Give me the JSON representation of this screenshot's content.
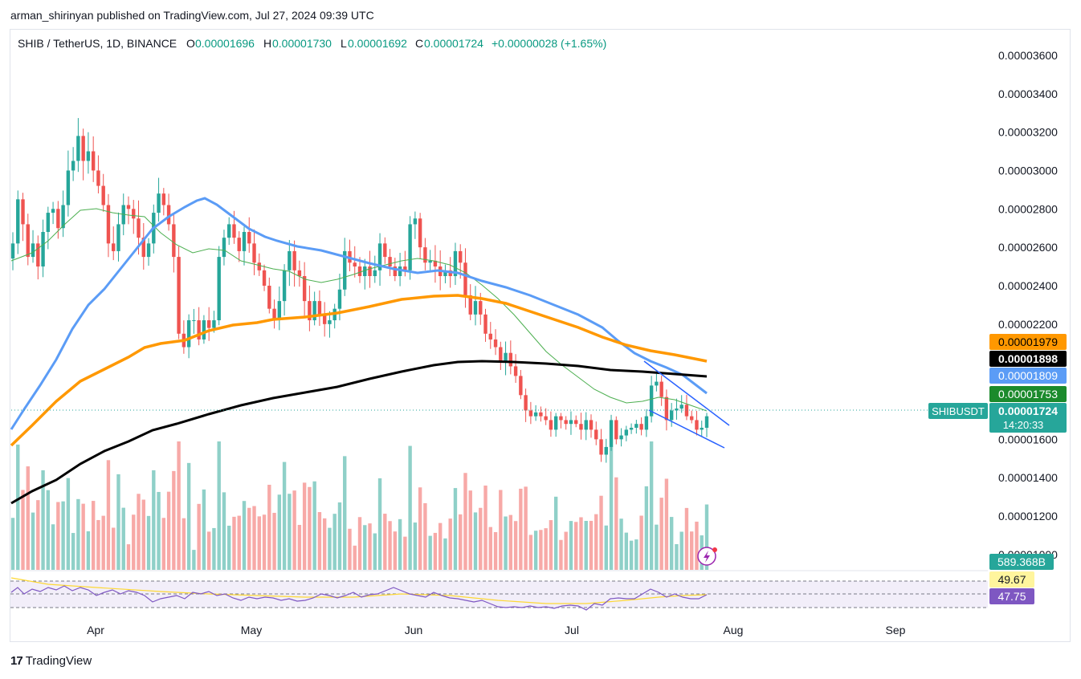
{
  "header": {
    "published": "arman_shirinyan published on TradingView.com, Jul 27, 2024 09:39 UTC"
  },
  "legend": {
    "symbol": "SHIB / TetherUS, 1D, BINANCE",
    "o_label": "O",
    "o_value": "0.00001696",
    "h_label": "H",
    "h_value": "0.00001730",
    "l_label": "L",
    "l_value": "0.00001692",
    "c_label": "C",
    "c_value": "0.00001724",
    "change": "+0.00000028 (+1.65%)"
  },
  "price_axis": {
    "ticks": [
      "0.00003600",
      "0.00003400",
      "0.00003200",
      "0.00003000",
      "0.00002800",
      "0.00002600",
      "0.00002400",
      "0.00002200",
      "0.00001600",
      "0.00001400",
      "0.00001200",
      "0.00001000"
    ],
    "tick_values": [
      3.6e-05,
      3.4e-05,
      3.2e-05,
      3e-05,
      2.8e-05,
      2.6e-05,
      2.4e-05,
      2.2e-05,
      1.6e-05,
      1.4e-05,
      1.2e-05,
      1e-05
    ]
  },
  "badges": {
    "ma_orange": {
      "text": "0.00001979",
      "color": "#ff9800",
      "value": 1.979e-05
    },
    "ma_black": {
      "text": "0.00001898",
      "color": "#000000",
      "value": 1.898e-05
    },
    "ma_blue": {
      "text": "0.00001809",
      "color": "#5b9cf6",
      "value": 1.809e-05
    },
    "ma_green": {
      "text": "0.00001753",
      "color": "#1b8a2c",
      "value": 1.753e-05
    },
    "ticker": "SHIBUSDT",
    "last_price": "0.00001724",
    "countdown": "14:20:33",
    "last_color": "#26a69a",
    "volume": "589.368B",
    "rsi_ma": "49.67",
    "rsi": "47.75"
  },
  "time_axis": [
    "Apr",
    "May",
    "Jun",
    "Jul",
    "Aug",
    "Sep"
  ],
  "footer": {
    "brand": "TradingView"
  },
  "colors": {
    "up": "#26a69a",
    "down": "#ef5350",
    "up_vol": "#8fd0c8",
    "down_vol": "#f7a9a7"
  },
  "chart_data": {
    "type": "candlestick",
    "title": "SHIB / TetherUS, 1D, BINANCE",
    "y_range": [
      9.2e-06,
      3.7e-05
    ],
    "x_categories": [
      "Apr",
      "May",
      "Jun",
      "Jul",
      "Aug",
      "Sep"
    ],
    "candles_close": [
      2.62e-05,
      2.85e-05,
      2.72e-05,
      2.55e-05,
      2.62e-05,
      2.5e-05,
      2.68e-05,
      2.78e-05,
      2.8e-05,
      2.7e-05,
      2.82e-05,
      3e-05,
      3.05e-05,
      3.18e-05,
      3.05e-05,
      3.1e-05,
      3e-05,
      2.92e-05,
      2.82e-05,
      2.62e-05,
      2.58e-05,
      2.72e-05,
      2.82e-05,
      2.8e-05,
      2.75e-05,
      2.65e-05,
      2.55e-05,
      2.62e-05,
      2.78e-05,
      2.88e-05,
      2.82e-05,
      2.72e-05,
      2.55e-05,
      2.15e-05,
      2.08e-05,
      2.22e-05,
      2.22e-05,
      2.12e-05,
      2.22e-05,
      2.18e-05,
      2.22e-05,
      2.55e-05,
      2.65e-05,
      2.72e-05,
      2.65e-05,
      2.58e-05,
      2.68e-05,
      2.62e-05,
      2.52e-05,
      2.48e-05,
      2.4e-05,
      2.28e-05,
      2.22e-05,
      2.32e-05,
      2.48e-05,
      2.58e-05,
      2.48e-05,
      2.45e-05,
      2.32e-05,
      2.22e-05,
      2.32e-05,
      2.25e-05,
      2.2e-05,
      2.22e-05,
      2.28e-05,
      2.38e-05,
      2.58e-05,
      2.52e-05,
      2.5e-05,
      2.45e-05,
      2.5e-05,
      2.45e-05,
      2.48e-05,
      2.62e-05,
      2.55e-05,
      2.5e-05,
      2.45e-05,
      2.5e-05,
      2.48e-05,
      2.72e-05,
      2.75e-05,
      2.6e-05,
      2.52e-05,
      2.53e-05,
      2.5e-05,
      2.45e-05,
      2.48e-05,
      2.45e-05,
      2.58e-05,
      2.52e-05,
      2.35e-05,
      2.25e-05,
      2.32e-05,
      2.25e-05,
      2.15e-05,
      2.12e-05,
      2.08e-05,
      2e-05,
      2.05e-05,
      1.98e-05,
      1.93e-05,
      1.83e-05,
      1.75e-05,
      1.72e-05,
      1.74e-05,
      1.72e-05,
      1.7e-05,
      1.65e-05,
      1.72e-05,
      1.7e-05,
      1.68e-05,
      1.7e-05,
      1.68e-05,
      1.65e-05,
      1.7e-05,
      1.65e-05,
      1.6e-05,
      1.52e-05,
      1.56e-05,
      1.7e-05,
      1.6e-05,
      1.62e-05,
      1.65e-05,
      1.66e-05,
      1.68e-05,
      1.65e-05,
      1.72e-05,
      1.88e-05,
      1.9e-05,
      1.82e-05,
      1.7e-05,
      1.75e-05,
      1.76e-05,
      1.78e-05,
      1.72e-05,
      1.7e-05,
      1.65e-05,
      1.66e-05,
      1.72e-05
    ]
  }
}
